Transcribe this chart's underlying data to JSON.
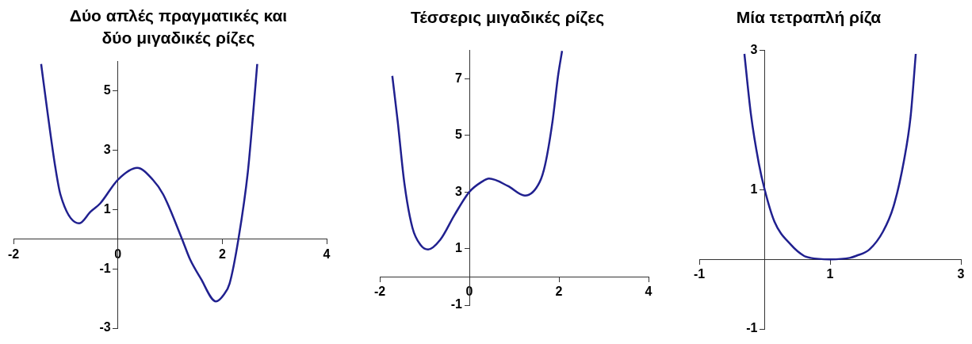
{
  "chart_data": [
    {
      "type": "line",
      "title": "Δύο απλές πραγματικές και δύο μιγαδικές ρίζες",
      "color": "#20208f",
      "xlim": [
        -2,
        4
      ],
      "ylim": [
        -3,
        6
      ],
      "xticks": [
        -2,
        0,
        2,
        4
      ],
      "yticks": [
        -3,
        -1,
        1,
        3,
        5
      ],
      "x": [
        -1.47,
        -1.35,
        -1.2,
        -1.1,
        -0.74,
        -0.52,
        -0.34,
        0,
        0.37,
        0.67,
        0.87,
        1.23,
        1.38,
        1.58,
        1.88,
        2.03,
        2.14,
        2.31,
        2.49,
        2.59,
        2.67
      ],
      "values": [
        5.9,
        4.3,
        2.44,
        1.5,
        0.53,
        0.93,
        1.2,
        2,
        2.4,
        2,
        1.5,
        0,
        -0.67,
        -1.3,
        -2.1,
        -1.87,
        -1.5,
        0,
        2.26,
        4.2,
        5.9
      ]
    },
    {
      "type": "line",
      "title": "Τέσσερις μιγαδικές ρίζες",
      "color": "#20208f",
      "xlim": [
        -2,
        4
      ],
      "ylim": [
        -1,
        8
      ],
      "xticks": [
        -2,
        0,
        2,
        4
      ],
      "yticks": [
        -1,
        1,
        3,
        5,
        7
      ],
      "x": [
        -1.72,
        -1.6,
        -1.45,
        -1.27,
        -1.09,
        -0.92,
        -0.65,
        -0.33,
        0,
        0.27,
        0.44,
        0.86,
        1.24,
        1.57,
        1.69,
        1.86,
        1.98,
        2.07
      ],
      "values": [
        7.1,
        5.5,
        3.3,
        1.73,
        1.13,
        0.97,
        1.31,
        2.19,
        3,
        3.35,
        3.47,
        3.21,
        2.87,
        3.35,
        3.95,
        5.53,
        7.1,
        7.98
      ]
    },
    {
      "type": "line",
      "title": "Μία τετραπλή ρίζα",
      "color": "#20208f",
      "xlim": [
        -1,
        3
      ],
      "ylim": [
        -1,
        3
      ],
      "xticks": [
        -1,
        1,
        3
      ],
      "yticks": [
        -1,
        1,
        3
      ],
      "x": [
        -0.31,
        -0.21,
        -0.09,
        0,
        0.15,
        0.4,
        0.6,
        0.7,
        1,
        1.3,
        1.4,
        1.6,
        1.81,
        1.97,
        2.13,
        2.23,
        2.31
      ],
      "values": [
        2.95,
        2.08,
        1.38,
        1,
        0.54,
        0.21,
        0.05,
        0.02,
        0,
        0.02,
        0.05,
        0.14,
        0.4,
        0.76,
        1.42,
        2.04,
        2.95
      ]
    }
  ]
}
